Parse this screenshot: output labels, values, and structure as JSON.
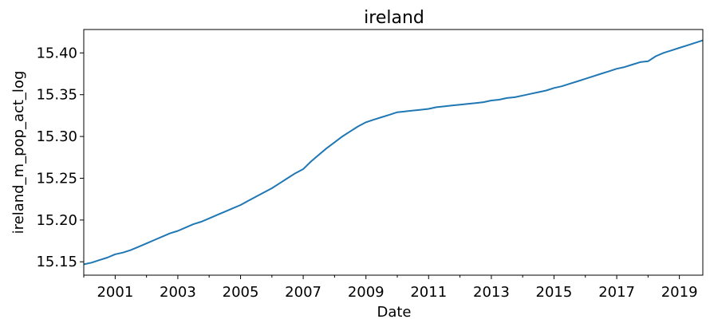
{
  "chart_data": {
    "type": "line",
    "title": "ireland",
    "xlabel": "Date",
    "ylabel": "ireland_m_pop_act_log",
    "xlim": [
      "2000-01-01",
      "2019-10-01"
    ],
    "ylim": [
      15.134,
      15.428
    ],
    "grid": false,
    "legend": "none",
    "x_ticks": [
      {
        "label": "2001",
        "date": "2001-01-01"
      },
      {
        "label": "2003",
        "date": "2003-01-01"
      },
      {
        "label": "2005",
        "date": "2005-01-01"
      },
      {
        "label": "2007",
        "date": "2007-01-01"
      },
      {
        "label": "2009",
        "date": "2009-01-01"
      },
      {
        "label": "2011",
        "date": "2011-01-01"
      },
      {
        "label": "2013",
        "date": "2013-01-01"
      },
      {
        "label": "2015",
        "date": "2015-01-01"
      },
      {
        "label": "2017",
        "date": "2017-01-01"
      },
      {
        "label": "2019",
        "date": "2019-01-01"
      }
    ],
    "x_minor_ticks": [
      "2000-01-01",
      "2002-01-01",
      "2004-01-01",
      "2006-01-01",
      "2008-01-01",
      "2010-01-01",
      "2012-01-01",
      "2014-01-01",
      "2016-01-01",
      "2018-01-01"
    ],
    "y_ticks": [
      {
        "label": "15.15",
        "value": 15.15
      },
      {
        "label": "15.20",
        "value": 15.2
      },
      {
        "label": "15.25",
        "value": 15.25
      },
      {
        "label": "15.30",
        "value": 15.3
      },
      {
        "label": "15.35",
        "value": 15.35
      },
      {
        "label": "15.40",
        "value": 15.4
      }
    ],
    "series": [
      {
        "color": "#1f77b4",
        "x": [
          "2000-01-01",
          "2000-04-01",
          "2000-07-01",
          "2000-10-01",
          "2001-01-01",
          "2001-04-01",
          "2001-07-01",
          "2001-10-01",
          "2002-01-01",
          "2002-04-01",
          "2002-07-01",
          "2002-10-01",
          "2003-01-01",
          "2003-04-01",
          "2003-07-01",
          "2003-10-01",
          "2004-01-01",
          "2004-04-01",
          "2004-07-01",
          "2004-10-01",
          "2005-01-01",
          "2005-04-01",
          "2005-07-01",
          "2005-10-01",
          "2006-01-01",
          "2006-04-01",
          "2006-07-01",
          "2006-10-01",
          "2007-01-01",
          "2007-04-01",
          "2007-07-01",
          "2007-10-01",
          "2008-01-01",
          "2008-04-01",
          "2008-07-01",
          "2008-10-01",
          "2009-01-01",
          "2009-04-01",
          "2009-07-01",
          "2009-10-01",
          "2010-01-01",
          "2010-04-01",
          "2010-07-01",
          "2010-10-01",
          "2011-01-01",
          "2011-04-01",
          "2011-07-01",
          "2011-10-01",
          "2012-01-01",
          "2012-04-01",
          "2012-07-01",
          "2012-10-01",
          "2013-01-01",
          "2013-04-01",
          "2013-07-01",
          "2013-10-01",
          "2014-01-01",
          "2014-04-01",
          "2014-07-01",
          "2014-10-01",
          "2015-01-01",
          "2015-04-01",
          "2015-07-01",
          "2015-10-01",
          "2016-01-01",
          "2016-04-01",
          "2016-07-01",
          "2016-10-01",
          "2017-01-01",
          "2017-04-01",
          "2017-07-01",
          "2017-10-01",
          "2018-01-01",
          "2018-04-01",
          "2018-07-01",
          "2018-10-01",
          "2019-01-01",
          "2019-04-01",
          "2019-07-01",
          "2019-10-01"
        ],
        "values": [
          15.147,
          15.149,
          15.152,
          15.155,
          15.159,
          15.161,
          15.164,
          15.168,
          15.172,
          15.176,
          15.18,
          15.184,
          15.187,
          15.191,
          15.195,
          15.198,
          15.202,
          15.206,
          15.21,
          15.214,
          15.218,
          15.223,
          15.228,
          15.233,
          15.238,
          15.244,
          15.25,
          15.256,
          15.261,
          15.27,
          15.278,
          15.286,
          15.293,
          15.3,
          15.306,
          15.312,
          15.317,
          15.32,
          15.323,
          15.326,
          15.329,
          15.33,
          15.331,
          15.332,
          15.333,
          15.335,
          15.336,
          15.337,
          15.338,
          15.339,
          15.34,
          15.341,
          15.343,
          15.344,
          15.346,
          15.347,
          15.349,
          15.351,
          15.353,
          15.355,
          15.358,
          15.36,
          15.363,
          15.366,
          15.369,
          15.372,
          15.375,
          15.378,
          15.381,
          15.383,
          15.386,
          15.389,
          15.39,
          15.396,
          15.4,
          15.403,
          15.406,
          15.409,
          15.412,
          15.415
        ]
      }
    ]
  }
}
